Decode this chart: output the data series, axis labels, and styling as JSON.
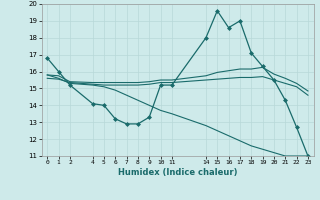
{
  "xlabel": "Humidex (Indice chaleur)",
  "background_color": "#ceeaea",
  "line_color": "#1a6b6b",
  "grid_color": "#b8d8d8",
  "ylim": [
    11,
    20
  ],
  "xlim": [
    -0.5,
    23.5
  ],
  "yticks": [
    11,
    12,
    13,
    14,
    15,
    16,
    17,
    18,
    19,
    20
  ],
  "xticks": [
    0,
    1,
    2,
    4,
    5,
    6,
    7,
    8,
    9,
    10,
    11,
    14,
    15,
    16,
    17,
    18,
    19,
    20,
    21,
    22,
    23
  ],
  "series": [
    {
      "x": [
        0,
        1,
        2,
        4,
        5,
        6,
        7,
        8,
        9,
        10,
        11,
        14,
        15,
        16,
        17,
        18,
        19,
        20,
        21,
        22,
        23
      ],
      "y": [
        16.8,
        16.0,
        15.2,
        14.1,
        14.0,
        13.2,
        12.9,
        12.9,
        13.3,
        15.2,
        15.2,
        18.0,
        19.6,
        18.6,
        19.0,
        17.1,
        16.3,
        15.5,
        14.3,
        12.7,
        11.0
      ],
      "style": "-",
      "marker": "D",
      "markersize": 2.0,
      "linewidth": 0.9
    },
    {
      "x": [
        0,
        1,
        2,
        4,
        5,
        6,
        7,
        8,
        9,
        10,
        11,
        14,
        15,
        16,
        17,
        18,
        19,
        20,
        21,
        22,
        23
      ],
      "y": [
        15.8,
        15.75,
        15.4,
        15.35,
        15.35,
        15.35,
        15.35,
        15.35,
        15.4,
        15.5,
        15.5,
        15.75,
        15.95,
        16.05,
        16.15,
        16.15,
        16.25,
        15.85,
        15.6,
        15.3,
        14.85
      ],
      "style": "-",
      "marker": null,
      "markersize": 0,
      "linewidth": 0.8
    },
    {
      "x": [
        0,
        1,
        2,
        4,
        5,
        6,
        7,
        8,
        9,
        10,
        11,
        14,
        15,
        16,
        17,
        18,
        19,
        20,
        21,
        22,
        23
      ],
      "y": [
        15.6,
        15.55,
        15.35,
        15.25,
        15.2,
        15.2,
        15.2,
        15.2,
        15.25,
        15.35,
        15.35,
        15.5,
        15.55,
        15.6,
        15.65,
        15.65,
        15.7,
        15.5,
        15.3,
        15.1,
        14.6
      ],
      "style": "-",
      "marker": null,
      "markersize": 0,
      "linewidth": 0.8
    },
    {
      "x": [
        0,
        1,
        2,
        4,
        5,
        6,
        7,
        8,
        9,
        10,
        11,
        14,
        15,
        16,
        17,
        18,
        19,
        20,
        21,
        22,
        23
      ],
      "y": [
        15.8,
        15.6,
        15.3,
        15.2,
        15.1,
        14.9,
        14.6,
        14.3,
        14.0,
        13.7,
        13.5,
        12.8,
        12.5,
        12.2,
        11.9,
        11.6,
        11.4,
        11.2,
        11.0,
        11.0,
        11.0
      ],
      "style": "-",
      "marker": null,
      "markersize": 0,
      "linewidth": 0.8
    }
  ]
}
